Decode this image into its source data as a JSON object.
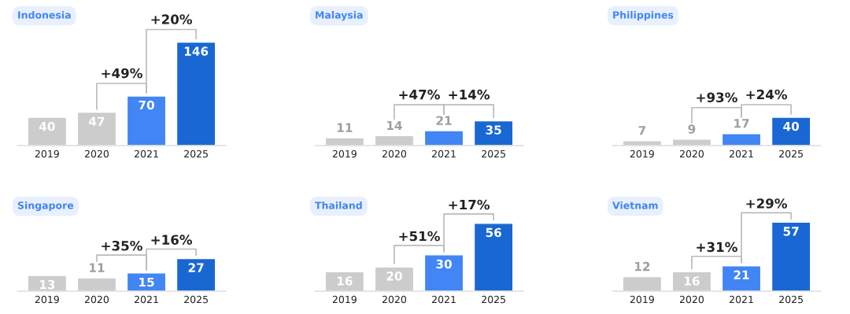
{
  "chart_data": [
    {
      "type": "bar",
      "title": "Indonesia",
      "categories": [
        "2019",
        "2020",
        "2021",
        "2025"
      ],
      "values": [
        40,
        47,
        70,
        146
      ],
      "colors": [
        "#cccccc",
        "#cccccc",
        "#4285f4",
        "#1967d2"
      ],
      "data_labels": true,
      "annotations": [
        "+49%",
        "+20%"
      ]
    },
    {
      "type": "bar",
      "title": "Malaysia",
      "categories": [
        "2019",
        "2020",
        "2021",
        "2025"
      ],
      "values": [
        11,
        14,
        21,
        35
      ],
      "colors": [
        "#cccccc",
        "#cccccc",
        "#4285f4",
        "#1967d2"
      ],
      "data_labels": true,
      "annotations": [
        "+47%",
        "+14%"
      ]
    },
    {
      "type": "bar",
      "title": "Philippines",
      "categories": [
        "2019",
        "2020",
        "2021",
        "2025"
      ],
      "values": [
        7,
        9,
        17,
        40
      ],
      "colors": [
        "#cccccc",
        "#cccccc",
        "#4285f4",
        "#1967d2"
      ],
      "data_labels": true,
      "annotations": [
        "+93%",
        "+24%"
      ]
    },
    {
      "type": "bar",
      "title": "Singapore",
      "categories": [
        "2019",
        "2020",
        "2021",
        "2025"
      ],
      "values": [
        13,
        11,
        15,
        27
      ],
      "colors": [
        "#cccccc",
        "#cccccc",
        "#4285f4",
        "#1967d2"
      ],
      "data_labels": true,
      "annotations": [
        "+35%",
        "+16%"
      ]
    },
    {
      "type": "bar",
      "title": "Thailand",
      "categories": [
        "2019",
        "2020",
        "2021",
        "2025"
      ],
      "values": [
        16,
        20,
        30,
        56
      ],
      "colors": [
        "#cccccc",
        "#cccccc",
        "#4285f4",
        "#1967d2"
      ],
      "data_labels": true,
      "annotations": [
        "+51%",
        "+17%"
      ]
    },
    {
      "type": "bar",
      "title": "Vietnam",
      "categories": [
        "2019",
        "2020",
        "2021",
        "2025"
      ],
      "values": [
        12,
        16,
        21,
        57
      ],
      "colors": [
        "#cccccc",
        "#cccccc",
        "#4285f4",
        "#1967d2"
      ],
      "data_labels": true,
      "annotations": [
        "+31%",
        "+29%"
      ]
    }
  ]
}
